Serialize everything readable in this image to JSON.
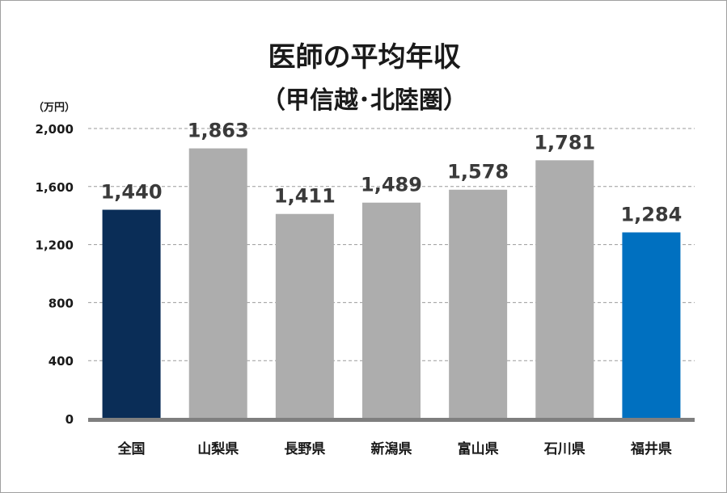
{
  "chart_data": {
    "type": "bar",
    "title": "医師の平均年収",
    "subtitle": "（甲信越･北陸圏）",
    "ylabel": "（万円）",
    "xlabel": "",
    "categories": [
      "全国",
      "山梨県",
      "長野県",
      "新潟県",
      "富山県",
      "石川県",
      "福井県"
    ],
    "values": [
      1440,
      1863,
      1411,
      1489,
      1578,
      1781,
      1284
    ],
    "data_labels": [
      "1,440",
      "1,863",
      "1,411",
      "1,489",
      "1,578",
      "1,781",
      "1,284"
    ],
    "ylim": [
      0,
      2000
    ],
    "yticks": [
      0,
      400,
      800,
      1200,
      1600,
      2000
    ],
    "ytick_labels": [
      "0",
      "400",
      "800",
      "1,200",
      "1,600",
      "2,000"
    ],
    "grid": true,
    "legend": "none",
    "bar_colors": [
      "#0a2d57",
      "#adadad",
      "#adadad",
      "#adadad",
      "#adadad",
      "#adadad",
      "#0070c0"
    ]
  }
}
